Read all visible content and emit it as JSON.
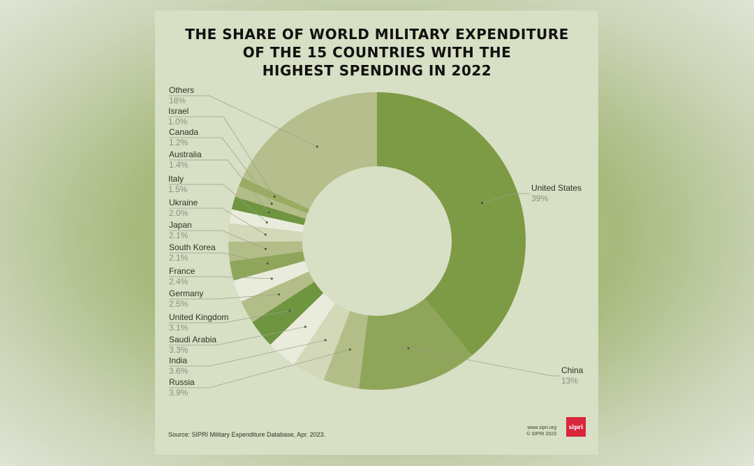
{
  "chart_data": {
    "type": "pie",
    "donut": true,
    "title": [
      "THE SHARE OF WORLD MILITARY EXPENDITURE",
      "OF THE 15 COUNTRIES WITH THE",
      "HIGHEST SPENDING IN 2022"
    ],
    "slices": [
      {
        "label": "United States",
        "value": 39,
        "display": "39%",
        "color": "#7d9a44"
      },
      {
        "label": "China",
        "value": 13,
        "display": "13%",
        "color": "#8fa65a"
      },
      {
        "label": "Russia",
        "value": 3.9,
        "display": "3.9%",
        "color": "#b3bd88"
      },
      {
        "label": "India",
        "value": 3.6,
        "display": "3.6%",
        "color": "#d2d8b8"
      },
      {
        "label": "Saudi Arabia",
        "value": 3.3,
        "display": "3.3%",
        "color": "#e9ecdd"
      },
      {
        "label": "United Kingdom",
        "value": 3.1,
        "display": "3.1%",
        "color": "#6f9540"
      },
      {
        "label": "Germany",
        "value": 2.5,
        "display": "2.5%",
        "color": "#b3bd88"
      },
      {
        "label": "France",
        "value": 2.4,
        "display": "2.4%",
        "color": "#e9ecdd"
      },
      {
        "label": "South Korea",
        "value": 2.1,
        "display": "2.1%",
        "color": "#8fa65a"
      },
      {
        "label": "Japan",
        "value": 2.1,
        "display": "2.1%",
        "color": "#b3bd88"
      },
      {
        "label": "Ukraine",
        "value": 2.0,
        "display": "2.0%",
        "color": "#d2d8b8"
      },
      {
        "label": "Italy",
        "value": 1.5,
        "display": "1.5%",
        "color": "#e9ecdd"
      },
      {
        "label": "Australia",
        "value": 1.4,
        "display": "1.4%",
        "color": "#6f9540"
      },
      {
        "label": "Canada",
        "value": 1.2,
        "display": "1.2%",
        "color": "#b3bd88"
      },
      {
        "label": "Israel",
        "value": 1.0,
        "display": "1.0%",
        "color": "#9aab62"
      },
      {
        "label": "Others",
        "value": 18,
        "display": "18%",
        "color": "#b5be8c"
      }
    ]
  },
  "footer": {
    "source": "Source: SIPRI Military Expenditure Database, Apr. 2023.",
    "url": "www.sipri.org",
    "copyright": "© SIPRI 2023",
    "logo_text": "sipri",
    "logo_color": "#d9263a"
  }
}
